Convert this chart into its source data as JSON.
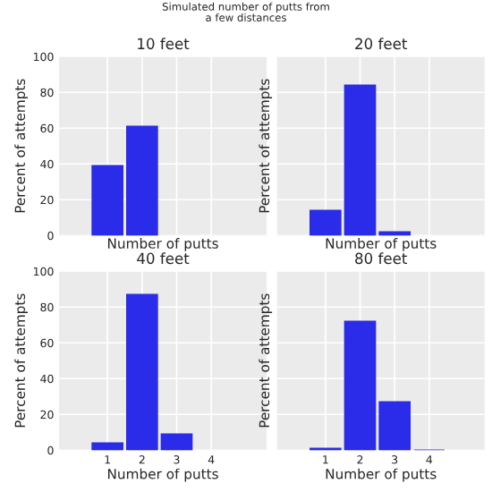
{
  "chart_data": [
    {
      "type": "bar",
      "title": "10 feet",
      "xlabel": "Number of putts",
      "ylabel": "Percent of attempts",
      "x": [
        1,
        2
      ],
      "values": [
        39,
        61
      ],
      "color": "#2b2bea",
      "xlim": [
        -0.4,
        5.6
      ],
      "xticks": [
        1,
        2,
        3,
        4
      ],
      "ylim": [
        0,
        100
      ],
      "yticks": [
        0,
        20,
        40,
        60,
        80,
        100
      ],
      "grid": true,
      "tick_labels": "y",
      "annotations": [
        "Simulated number of putts from\na few distances"
      ]
    },
    {
      "type": "bar",
      "title": "20 feet",
      "xlabel": "Number of putts",
      "ylabel": "Percent of attempts",
      "x": [
        1,
        2,
        3
      ],
      "values": [
        14,
        84,
        2
      ],
      "color": "#2b2bea",
      "xlim": [
        -0.4,
        5.6
      ],
      "xticks": [
        1,
        2,
        3,
        4
      ],
      "ylim": [
        0,
        100
      ],
      "yticks": [
        0,
        20,
        40,
        60,
        80,
        100
      ],
      "grid": true,
      "tick_labels": false
    },
    {
      "type": "bar",
      "title": "40 feet",
      "xlabel": "Number of putts",
      "ylabel": "Percent of attempts",
      "x": [
        1,
        2,
        3
      ],
      "values": [
        4,
        87,
        9
      ],
      "color": "#2b2bea",
      "xlim": [
        -0.4,
        5.6
      ],
      "xticks": [
        1,
        2,
        3,
        4
      ],
      "ylim": [
        0,
        100
      ],
      "yticks": [
        0,
        20,
        40,
        60,
        80,
        100
      ],
      "grid": true
    },
    {
      "type": "bar",
      "title": "80 feet",
      "xlabel": "Number of putts",
      "ylabel": "Percent of attempts",
      "x": [
        1,
        2,
        3,
        4
      ],
      "values": [
        1,
        72,
        27,
        0
      ],
      "color": "#2b2bea",
      "xlim": [
        -0.4,
        5.6
      ],
      "xticks": [
        1,
        2,
        3,
        4
      ],
      "ylim": [
        0,
        100
      ],
      "yticks": [
        0,
        20,
        40,
        60,
        80,
        100
      ],
      "grid": true,
      "tick_labels": "x"
    }
  ]
}
